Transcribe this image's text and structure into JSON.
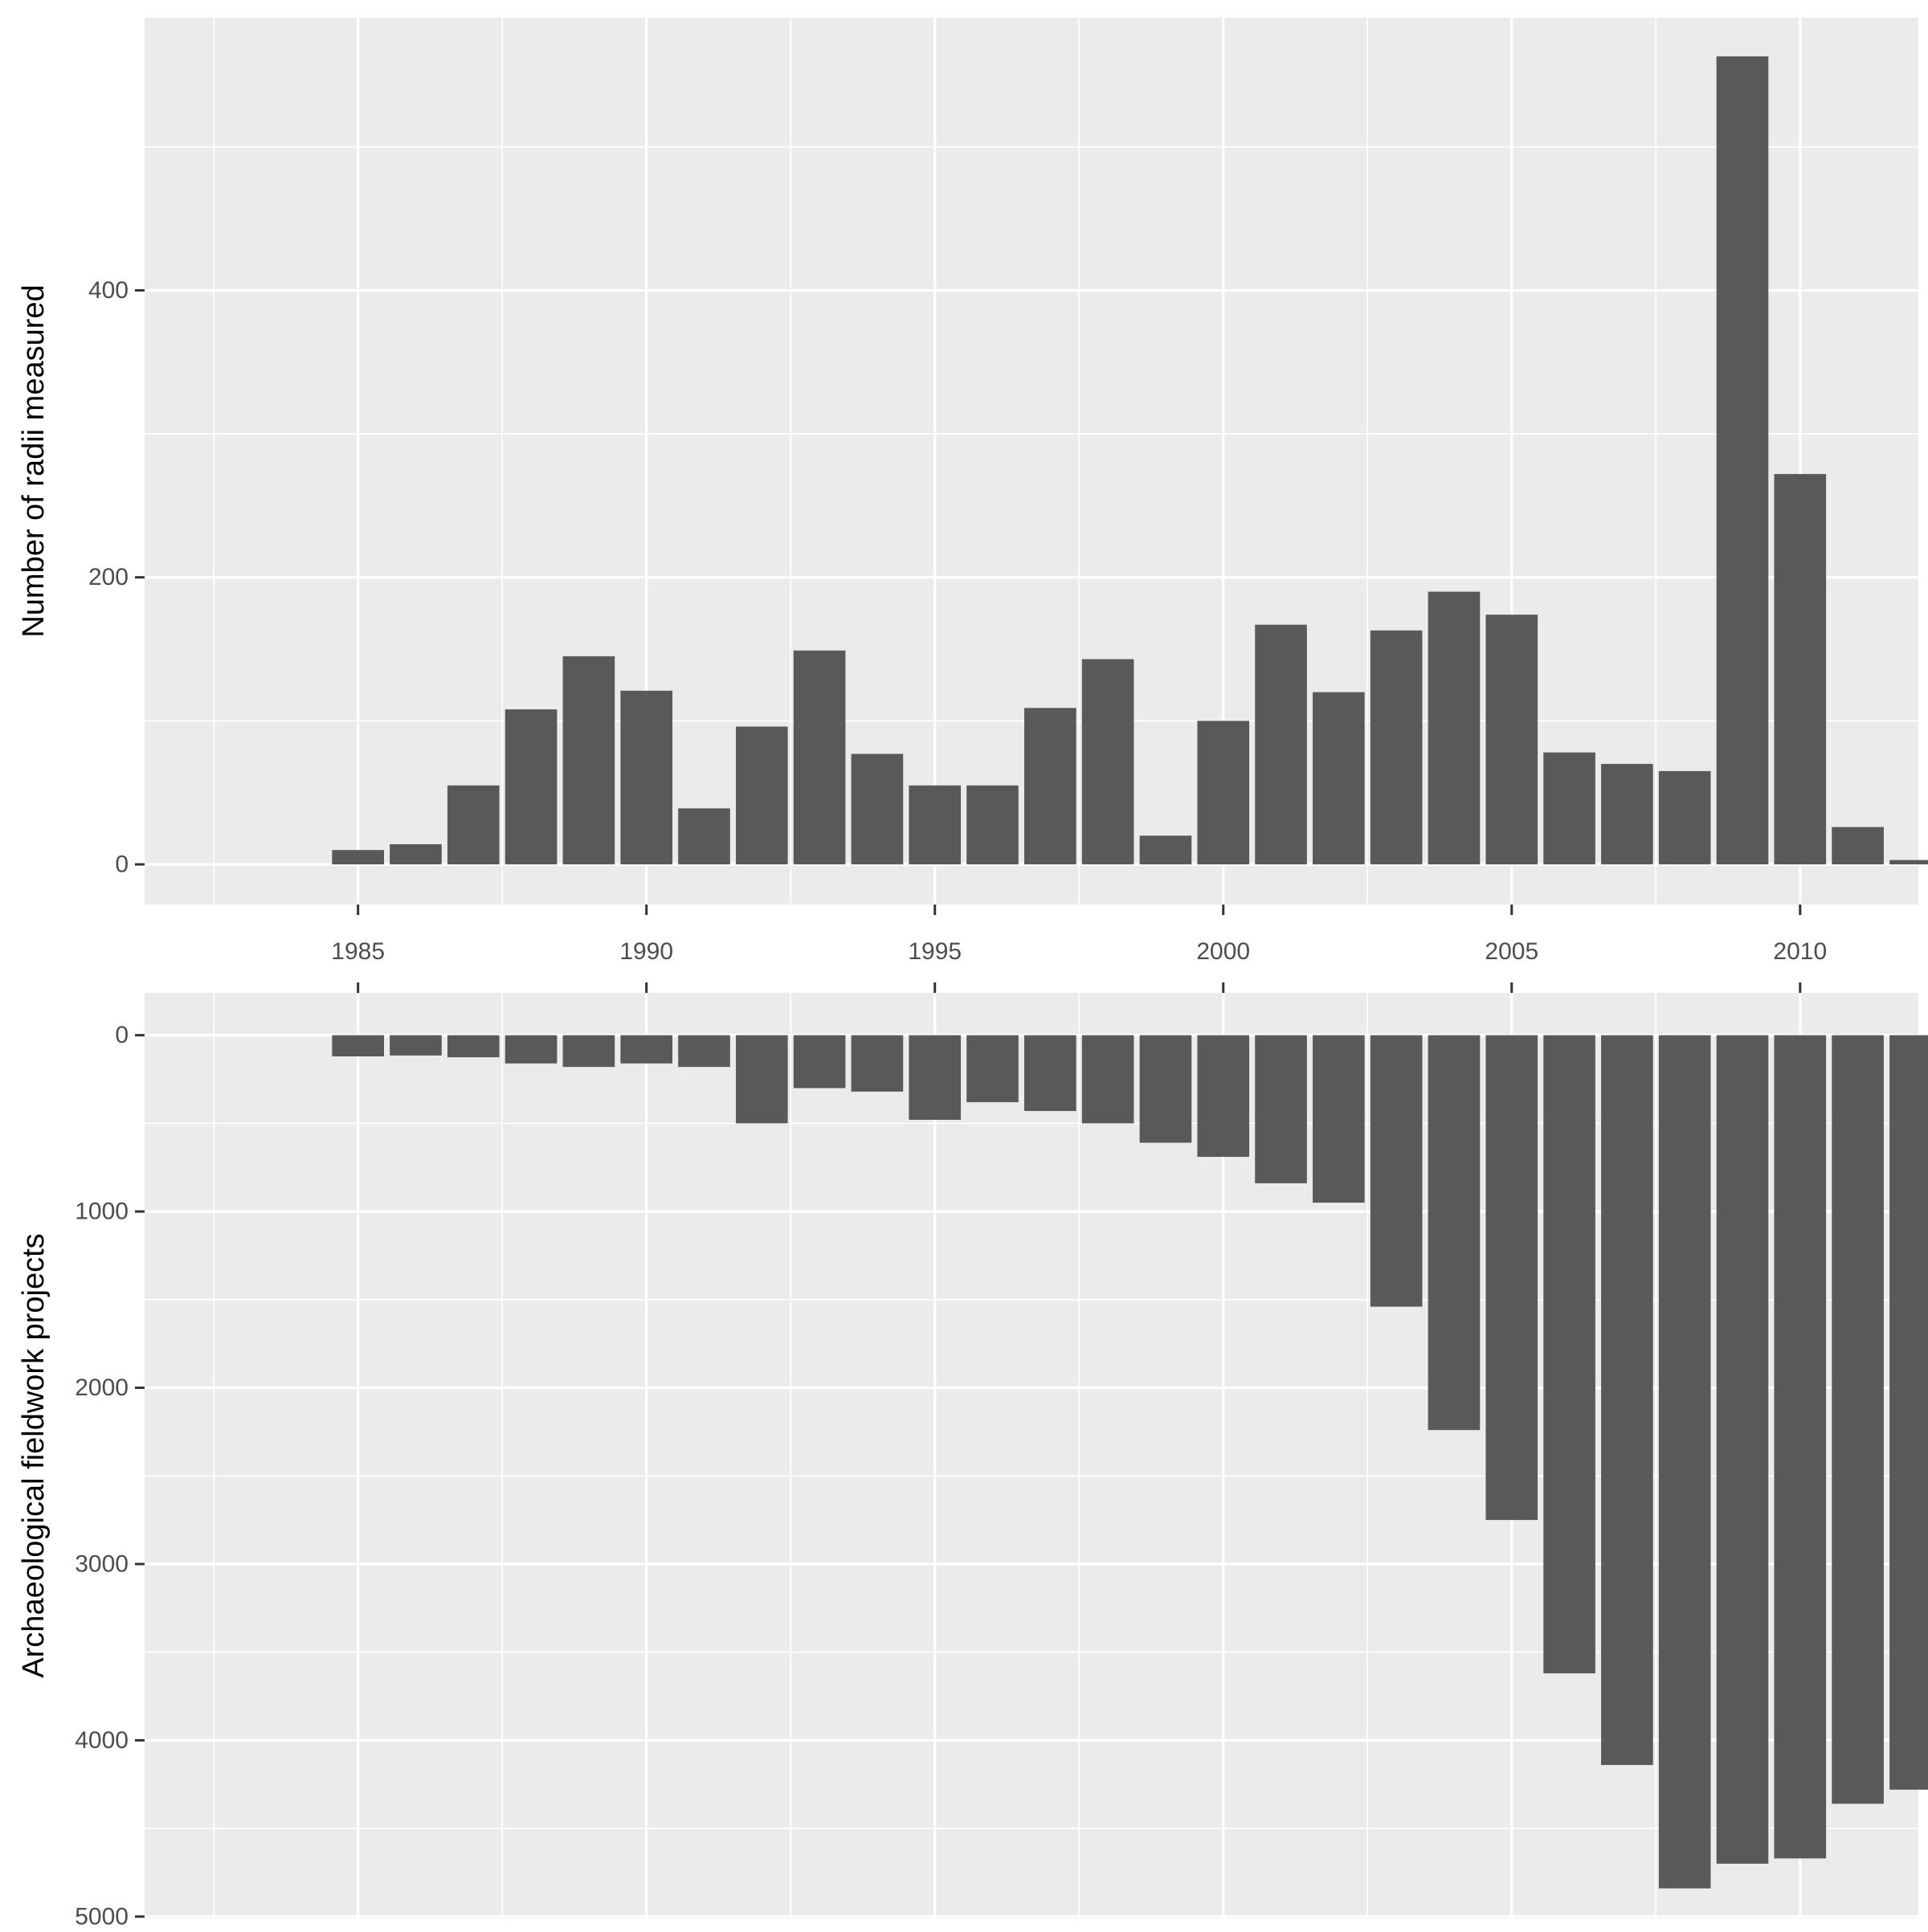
{
  "chart_data": [
    {
      "type": "bar",
      "title": "",
      "xlabel": "",
      "ylabel": "Number of radii measured",
      "x": [
        1985,
        1986,
        1987,
        1988,
        1989,
        1990,
        1991,
        1992,
        1993,
        1994,
        1995,
        1996,
        1997,
        1998,
        1999,
        2000,
        2001,
        2002,
        2003,
        2004,
        2005,
        2006,
        2007,
        2008,
        2009,
        2010,
        2011,
        2012
      ],
      "values": [
        10,
        14,
        55,
        108,
        145,
        121,
        39,
        96,
        149,
        77,
        55,
        55,
        109,
        143,
        20,
        100,
        167,
        120,
        163,
        190,
        174,
        78,
        70,
        65,
        563,
        272,
        26,
        3
      ],
      "xlim": [
        1981.3,
        2012.05
      ],
      "ylim": [
        -28,
        590
      ],
      "xticks": [
        "1985",
        "1990",
        "1995",
        "2000",
        "2005",
        "2010"
      ],
      "yticks": [
        "0",
        "200",
        "400"
      ],
      "grid": true,
      "bar_color": "#595959",
      "panel_color": "#ebebeb"
    },
    {
      "type": "bar",
      "title": "",
      "xlabel": "",
      "ylabel": "Archaeological fieldwork projects",
      "y_reversed": true,
      "x": [
        1985,
        1986,
        1987,
        1988,
        1989,
        1990,
        1991,
        1992,
        1993,
        1994,
        1995,
        1996,
        1997,
        1998,
        1999,
        2000,
        2001,
        2002,
        2003,
        2004,
        2005,
        2006,
        2007,
        2008,
        2009,
        2010,
        2011,
        2012
      ],
      "values": [
        120,
        115,
        125,
        160,
        180,
        160,
        180,
        500,
        300,
        320,
        480,
        380,
        430,
        500,
        610,
        690,
        840,
        950,
        1540,
        2240,
        2750,
        3620,
        4140,
        4840,
        4700,
        4670,
        4360,
        4280
      ],
      "xlim": [
        1981.3,
        2012.05
      ],
      "ylim": [
        -240,
        5010
      ],
      "yticks": [
        "0",
        "1000",
        "2000",
        "3000",
        "4000",
        "5000"
      ],
      "grid": true,
      "bar_color": "#595959",
      "panel_color": "#ebebeb"
    }
  ]
}
